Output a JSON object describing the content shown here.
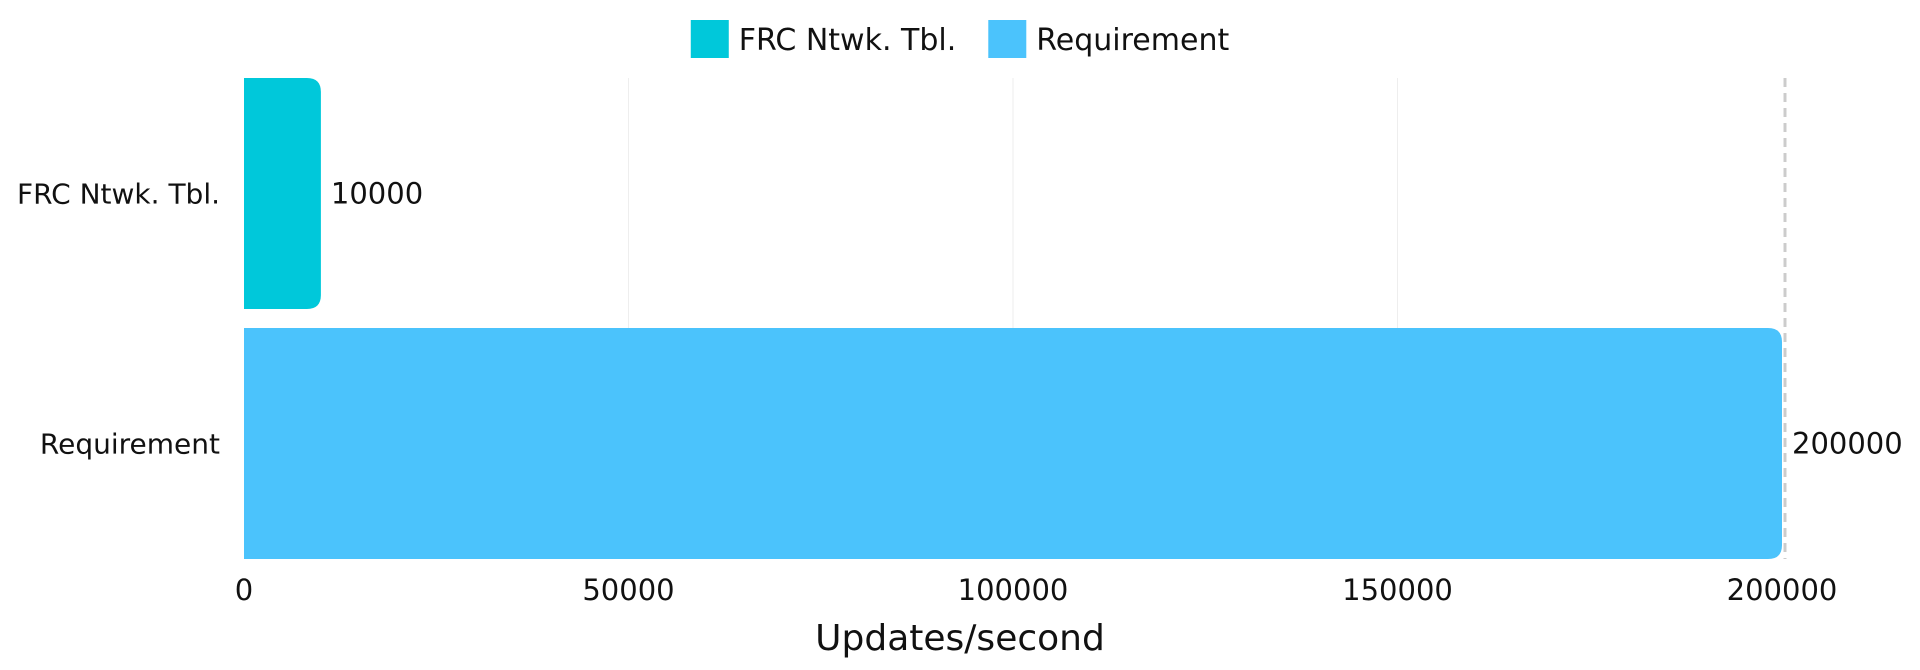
{
  "chart_data": {
    "type": "bar",
    "orientation": "horizontal",
    "categories": [
      "FRC Ntwk. Tbl.",
      "Requirement"
    ],
    "values": [
      10000,
      200000
    ],
    "series": [
      {
        "name": "FRC Ntwk. Tbl.",
        "color": "#00C8DA"
      },
      {
        "name": "Requirement",
        "color": "#4BC3FC"
      }
    ],
    "title": "",
    "xlabel": "Updates/second",
    "ylabel": "",
    "xlim": [
      0,
      200000
    ],
    "xticks": [
      "0",
      "50000",
      "100000",
      "150000",
      "200000"
    ],
    "data_labels": [
      "10000",
      "200000"
    ],
    "grid": true,
    "reference_line": 200000,
    "legend_position": "top-center"
  }
}
